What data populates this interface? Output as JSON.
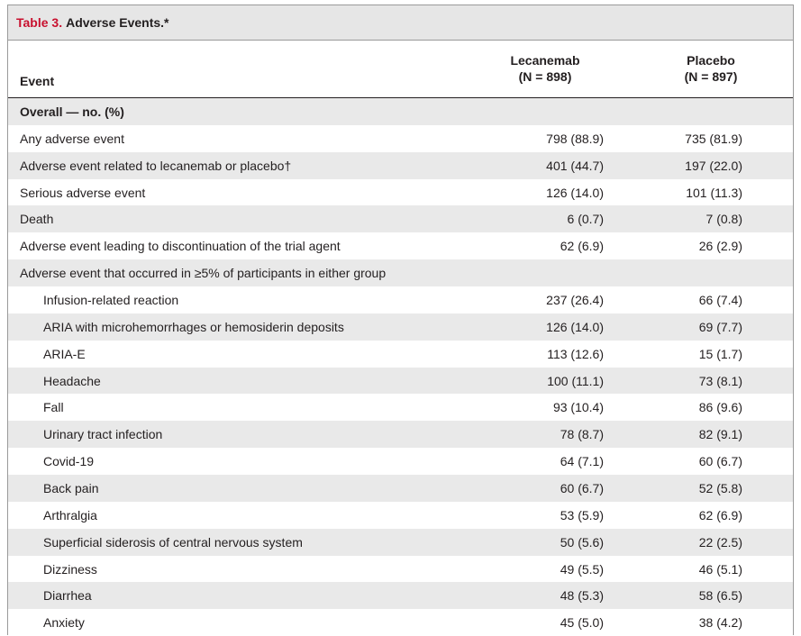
{
  "table": {
    "label": "Table 3.",
    "title": "Adverse Events.*",
    "headers": {
      "event": "Event",
      "lecanemab_name": "Lecanemab",
      "lecanemab_n": "(N = 898)",
      "placebo_name": "Placebo",
      "placebo_n": "(N = 897)"
    },
    "rows": [
      {
        "event": "Overall — no. (%)",
        "lecanemab": "",
        "placebo": "",
        "type": "section"
      },
      {
        "event": "Any adverse event",
        "lecanemab": "798 (88.9)",
        "placebo": "735 (81.9)",
        "type": "normal"
      },
      {
        "event": "Adverse event related to lecanemab or placebo†",
        "lecanemab": "401 (44.7)",
        "placebo": "197 (22.0)",
        "type": "normal"
      },
      {
        "event": "Serious adverse event",
        "lecanemab": "126 (14.0)",
        "placebo": "101 (11.3)",
        "type": "normal"
      },
      {
        "event": "Death",
        "lecanemab": "6 (0.7)",
        "placebo": "7 (0.8)",
        "type": "normal"
      },
      {
        "event": "Adverse event leading to discontinuation of the trial agent",
        "lecanemab": "62 (6.9)",
        "placebo": "26 (2.9)",
        "type": "normal"
      },
      {
        "event": "Adverse event that occurred in ≥5% of participants in either group",
        "lecanemab": "",
        "placebo": "",
        "type": "normal"
      },
      {
        "event": "Infusion-related reaction",
        "lecanemab": "237 (26.4)",
        "placebo": "66 (7.4)",
        "type": "indent"
      },
      {
        "event": "ARIA with microhemorrhages or hemosiderin deposits",
        "lecanemab": "126 (14.0)",
        "placebo": "69 (7.7)",
        "type": "indent"
      },
      {
        "event": "ARIA-E",
        "lecanemab": "113 (12.6)",
        "placebo": "15 (1.7)",
        "type": "indent"
      },
      {
        "event": "Headache",
        "lecanemab": "100 (11.1)",
        "placebo": "73 (8.1)",
        "type": "indent"
      },
      {
        "event": "Fall",
        "lecanemab": "93 (10.4)",
        "placebo": "86 (9.6)",
        "type": "indent"
      },
      {
        "event": "Urinary tract infection",
        "lecanemab": "78 (8.7)",
        "placebo": "82 (9.1)",
        "type": "indent"
      },
      {
        "event": "Covid-19",
        "lecanemab": "64 (7.1)",
        "placebo": "60 (6.7)",
        "type": "indent"
      },
      {
        "event": "Back pain",
        "lecanemab": "60 (6.7)",
        "placebo": "52 (5.8)",
        "type": "indent"
      },
      {
        "event": "Arthralgia",
        "lecanemab": "53 (5.9)",
        "placebo": "62 (6.9)",
        "type": "indent"
      },
      {
        "event": "Superficial siderosis of central nervous system",
        "lecanemab": "50 (5.6)",
        "placebo": "22 (2.5)",
        "type": "indent"
      },
      {
        "event": "Dizziness",
        "lecanemab": "49 (5.5)",
        "placebo": "46 (5.1)",
        "type": "indent"
      },
      {
        "event": "Diarrhea",
        "lecanemab": "48 (5.3)",
        "placebo": "58 (6.5)",
        "type": "indent"
      },
      {
        "event": "Anxiety",
        "lecanemab": "45 (5.0)",
        "placebo": "38 (4.2)",
        "type": "indent"
      }
    ]
  },
  "colors": {
    "label_red": "#c8102e",
    "title_bg": "#e6e6e6",
    "shade_row": "#e9e9e9"
  }
}
